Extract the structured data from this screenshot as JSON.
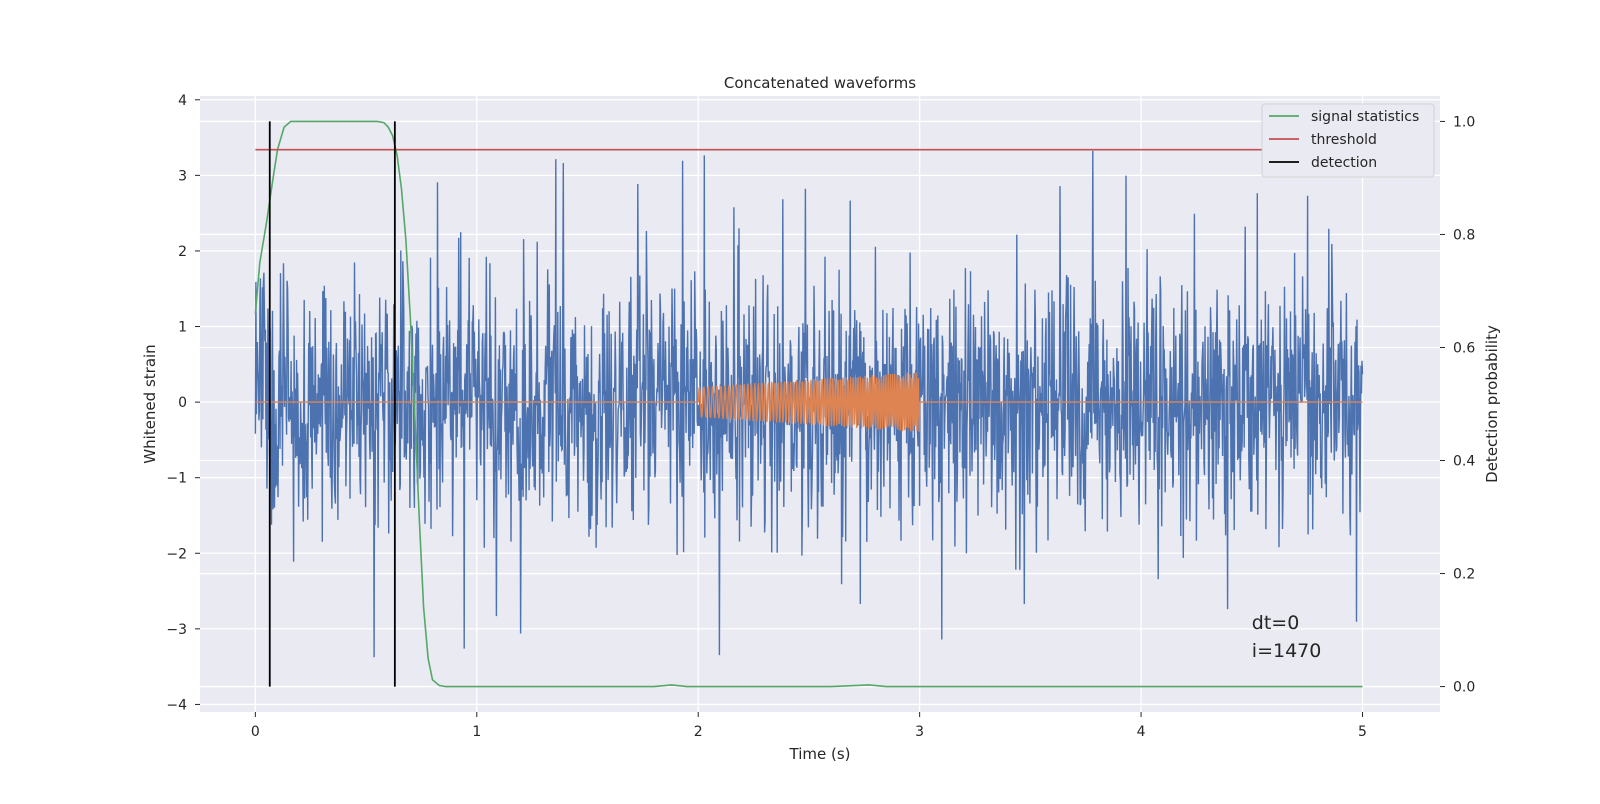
{
  "chart_data": {
    "type": "line",
    "title": "Concatenated waveforms",
    "xlabel": "Time (s)",
    "ylabel": "Whitened strain",
    "y2label": "Detection probability",
    "xlim": [
      -0.25,
      5.35
    ],
    "ylim": [
      -4.1,
      4.05
    ],
    "y2lim": [
      -0.045,
      1.045
    ],
    "x_ticks": [
      0,
      1,
      2,
      3,
      4,
      5
    ],
    "y_ticks": [
      -4,
      -3,
      -2,
      -1,
      0,
      1,
      2,
      3,
      4
    ],
    "y2_ticks": [
      0.0,
      0.2,
      0.4,
      0.6,
      0.8,
      1.0
    ],
    "x_tick_labels": [
      "0",
      "1",
      "2",
      "3",
      "4",
      "5"
    ],
    "y_tick_labels": [
      "−4",
      "−3",
      "−2",
      "−1",
      "0",
      "1",
      "2",
      "3",
      "4"
    ],
    "y2_tick_labels": [
      "0.0",
      "0.2",
      "0.4",
      "0.6",
      "0.8",
      "1.0"
    ],
    "grid": true,
    "legend_position": "top-right",
    "series": [
      {
        "name": "",
        "axis": "left",
        "color": "#4c72b0",
        "description": "noisy whitened strain, 0 to 5 s",
        "x_range": [
          0,
          5
        ],
        "typical_amplitude": 2.0,
        "peak_max": 3.65,
        "peak_min": -3.75
      },
      {
        "name": "",
        "axis": "left",
        "color": "#dd8452",
        "description": "injected chirp waveform, zero elsewhere",
        "x_range": [
          0,
          5
        ],
        "chirp_start": 2.0,
        "chirp_end": 3.0,
        "amplitude_start": 0.2,
        "amplitude_end": 0.4
      },
      {
        "name": "signal statistics",
        "axis": "right",
        "color": "#55a868",
        "x": [
          0,
          0.02,
          0.05,
          0.08,
          0.1,
          0.13,
          0.16,
          0.2,
          0.3,
          0.5,
          0.55,
          0.58,
          0.6,
          0.62,
          0.64,
          0.66,
          0.68,
          0.7,
          0.72,
          0.74,
          0.76,
          0.78,
          0.8,
          0.83,
          0.86,
          1.0,
          1.5,
          1.8,
          1.88,
          1.95,
          2.2,
          2.6,
          2.77,
          2.85,
          3.2,
          4.0,
          5.0
        ],
        "values": [
          0.66,
          0.75,
          0.82,
          0.9,
          0.95,
          0.99,
          1.0,
          1.0,
          1.0,
          1.0,
          1.0,
          0.998,
          0.99,
          0.975,
          0.94,
          0.88,
          0.79,
          0.65,
          0.48,
          0.3,
          0.14,
          0.05,
          0.012,
          0.002,
          0.0,
          0.0,
          0.0,
          0.0,
          0.003,
          0.0,
          0.0,
          0.0,
          0.003,
          0.0,
          0.0,
          0.0,
          0.0
        ]
      },
      {
        "name": "threshold",
        "axis": "right",
        "color": "#c44e52",
        "x": [
          0,
          5
        ],
        "values": [
          0.95,
          0.95
        ]
      },
      {
        "name": "detection",
        "axis": "right",
        "color": "#000000",
        "vlines_x": [
          0.065,
          0.63
        ],
        "vlines_range": [
          0.0,
          1.0
        ]
      }
    ],
    "annotations": [
      {
        "x": 4.5,
        "y": -3.0,
        "text": "dt=0"
      },
      {
        "x": 4.5,
        "y": -3.37,
        "text": "i=1470"
      }
    ]
  }
}
